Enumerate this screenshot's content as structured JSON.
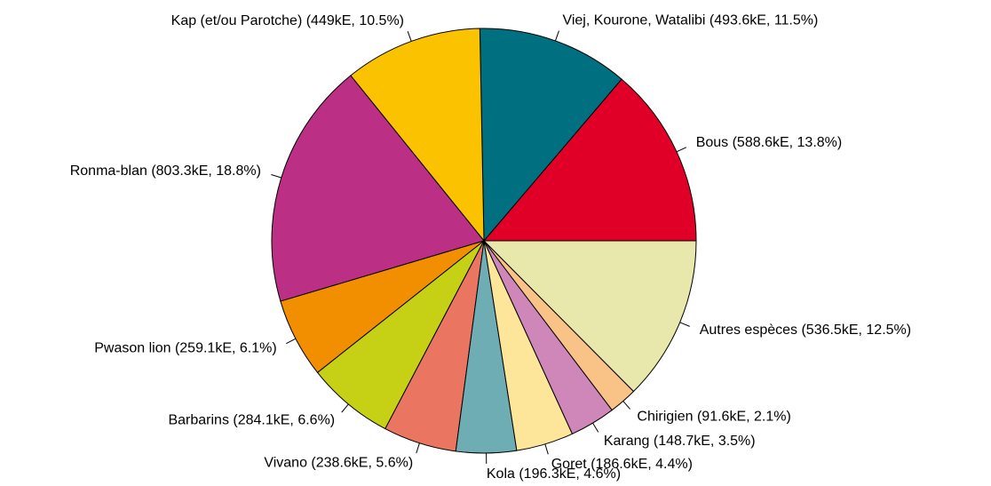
{
  "chart_data": {
    "type": "pie",
    "categories": [
      "Bous  (588.6kE, 13.8%)",
      "Viej, Kourone, Watalibi (493.6kE, 11.5%)",
      "Kap (et/ou Parotche) (449kE, 10.5%)",
      "Ronma-blan (803.3kE, 18.8%)",
      "Pwason lion (259.1kE, 6.1%)",
      "Barbarins (284.1kE, 6.6%)",
      "Vivano (238.6kE, 5.6%)",
      "Kola (196.3kE, 4.6%)",
      "Goret (186.6kE, 4.4%)",
      "Karang (148.7kE, 3.5%)",
      "Chirigien (91.6kE, 2.1%)",
      "Autres espèces (536.5kE, 12.5%)"
    ],
    "values": [
      588.6,
      493.6,
      449,
      803.3,
      259.1,
      284.1,
      238.6,
      196.3,
      186.6,
      148.7,
      91.6,
      536.5
    ],
    "colors": [
      "#e00027",
      "#007080",
      "#fbc200",
      "#bb3085",
      "#f18f00",
      "#c6d014",
      "#ea7662",
      "#6fadb5",
      "#fde69a",
      "#cf86b9",
      "#f9c287",
      "#e8e8ad"
    ],
    "start_angle": 0,
    "direction": "counterclockwise"
  }
}
